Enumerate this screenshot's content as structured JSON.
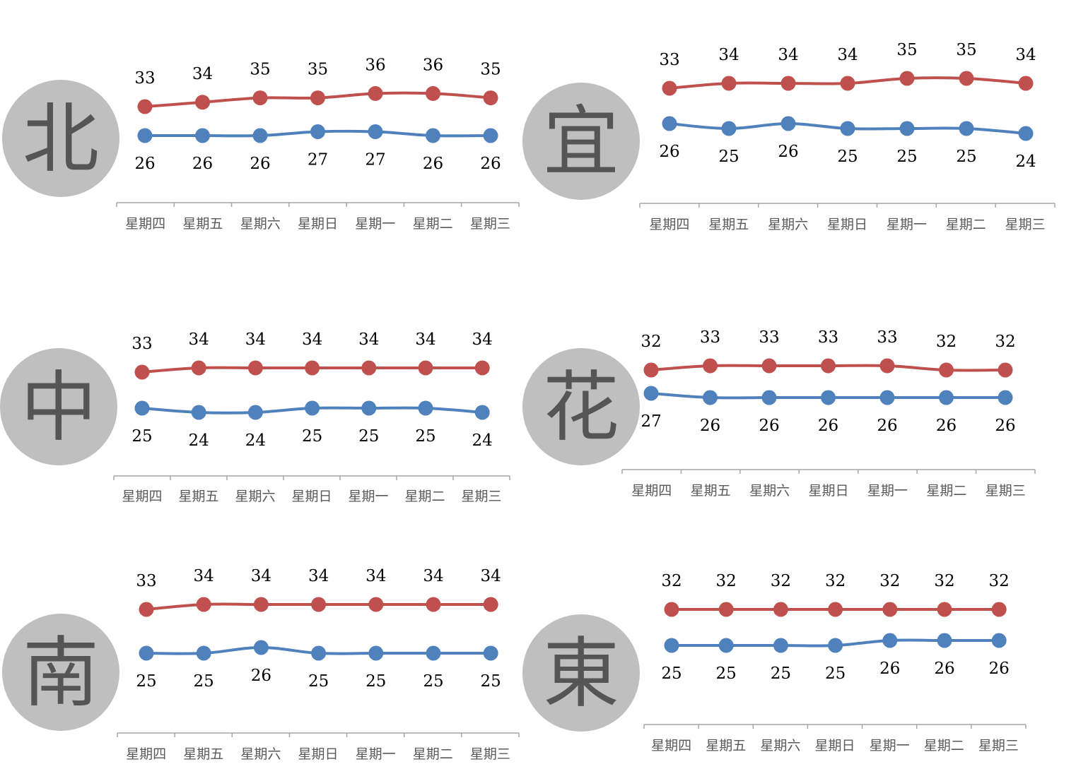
{
  "colors": {
    "high": "#C0504D",
    "low": "#4F81BD",
    "badge": "#BFBFBF",
    "badge_text": "#555555",
    "axis": "#A6A6A6",
    "category_text": "#595959"
  },
  "chart_data": [
    {
      "type": "line",
      "region": "北",
      "categories": [
        "星期四",
        "星期五",
        "星期六",
        "星期日",
        "星期一",
        "星期二",
        "星期三"
      ],
      "series": [
        {
          "values": [
            33,
            34,
            35,
            35,
            36,
            36,
            35
          ]
        },
        {
          "values": [
            26,
            26,
            26,
            27,
            27,
            26,
            26
          ]
        }
      ]
    },
    {
      "type": "line",
      "region": "宜",
      "categories": [
        "星期四",
        "星期五",
        "星期六",
        "星期日",
        "星期一",
        "星期二",
        "星期三"
      ],
      "series": [
        {
          "values": [
            33,
            34,
            34,
            34,
            35,
            35,
            34
          ]
        },
        {
          "values": [
            26,
            25,
            26,
            25,
            25,
            25,
            24
          ]
        }
      ]
    },
    {
      "type": "line",
      "region": "中",
      "categories": [
        "星期四",
        "星期五",
        "星期六",
        "星期日",
        "星期一",
        "星期二",
        "星期三"
      ],
      "series": [
        {
          "values": [
            33,
            34,
            34,
            34,
            34,
            34,
            34
          ]
        },
        {
          "values": [
            25,
            24,
            24,
            25,
            25,
            25,
            24
          ]
        }
      ]
    },
    {
      "type": "line",
      "region": "花",
      "categories": [
        "星期四",
        "星期五",
        "星期六",
        "星期日",
        "星期一",
        "星期二",
        "星期三"
      ],
      "series": [
        {
          "values": [
            32,
            33,
            33,
            33,
            33,
            32,
            32
          ]
        },
        {
          "values": [
            27,
            26,
            26,
            26,
            26,
            26,
            26
          ]
        }
      ]
    },
    {
      "type": "line",
      "region": "南",
      "categories": [
        "星期四",
        "星期五",
        "星期六",
        "星期日",
        "星期一",
        "星期二",
        "星期三"
      ],
      "series": [
        {
          "values": [
            33,
            34,
            34,
            34,
            34,
            34,
            34
          ]
        },
        {
          "values": [
            25,
            25,
            26,
            25,
            25,
            25,
            25
          ]
        }
      ]
    },
    {
      "type": "line",
      "region": "東",
      "categories": [
        "星期四",
        "星期五",
        "星期六",
        "星期日",
        "星期一",
        "星期二",
        "星期三"
      ],
      "series": [
        {
          "values": [
            32,
            32,
            32,
            32,
            32,
            32,
            32
          ]
        },
        {
          "values": [
            25,
            25,
            25,
            25,
            26,
            26,
            26
          ]
        }
      ]
    }
  ]
}
